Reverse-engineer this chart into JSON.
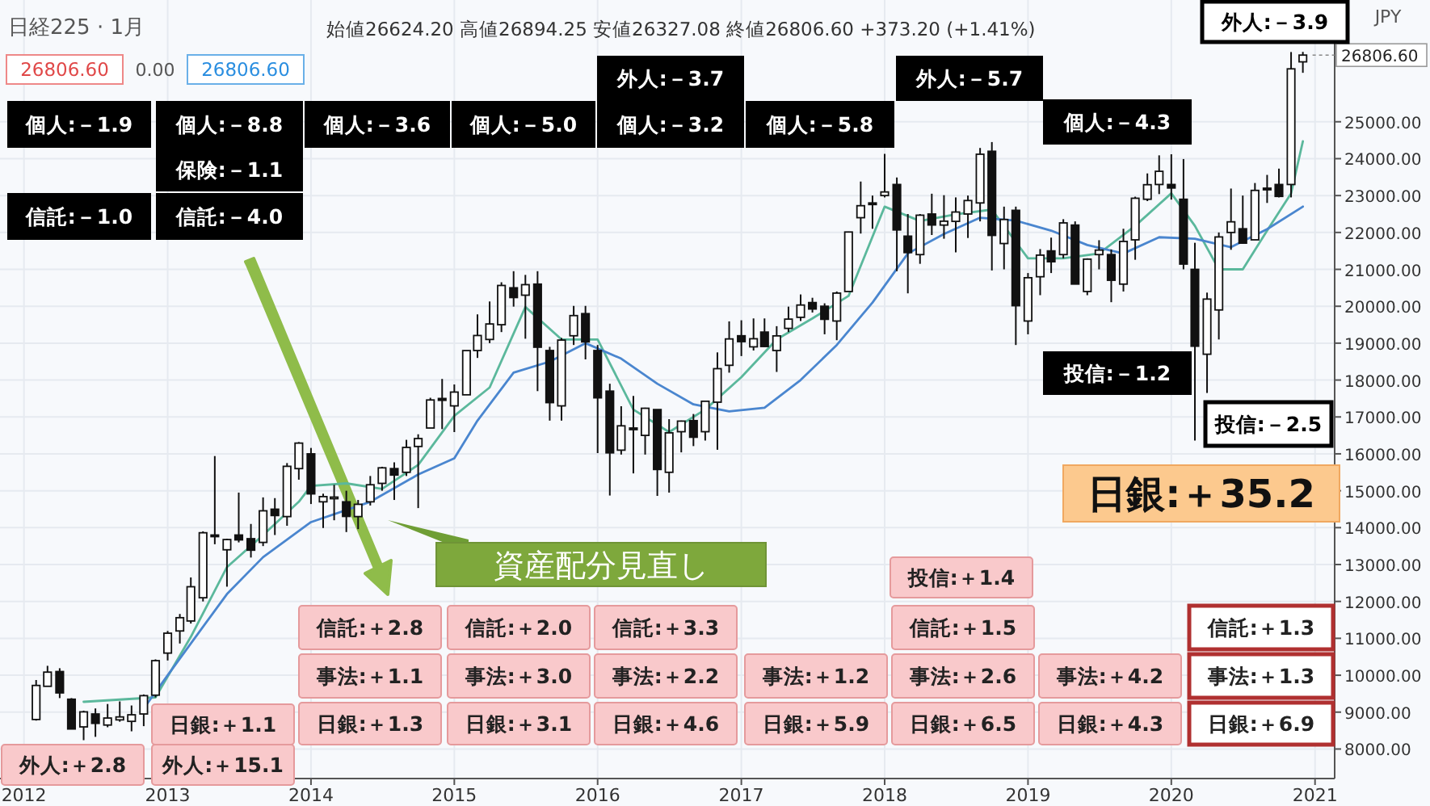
{
  "chart_data": {
    "type": "candlestick",
    "title": "日経225 · 1月",
    "subtitle": "始値26624.20 高値26894.25 安値26327.08 終値26806.60 +373.20 (+1.41%)",
    "annotations": [
      "26806.60",
      "0.00",
      "26806.60",
      "JPY",
      {
        "text": "26806.60",
        "x": "2020-12",
        "y": 26806.6
      },
      "個人:－1.9",
      "信託:－1.0",
      "個人:－8.8",
      "保険:－1.1",
      "信託:－4.0",
      "個人:－3.6",
      "個人:－5.0",
      "外人:－3.7",
      "個人:－3.2",
      "個人:－5.8",
      "外人:－5.7",
      "個人:－4.3",
      "投信:－1.2",
      "外人:－3.9",
      "投信:－2.5",
      "日銀:＋35.2",
      "資産配分見直し",
      "外人:＋2.8",
      "外人:＋15.1",
      "日銀:＋1.1",
      "信託:＋2.8",
      "事法:＋1.1",
      "日銀:＋1.3",
      "信託:＋2.0",
      "事法:＋3.0",
      "日銀:＋3.1",
      "信託:＋3.3",
      "事法:＋2.2",
      "日銀:＋4.6",
      "事法:＋1.2",
      "日銀:＋5.9",
      "投信:＋1.4",
      "信託:＋1.5",
      "事法:＋2.6",
      "日銀:＋6.5",
      "事法:＋4.2",
      "日銀:＋4.3",
      "信託:＋1.3",
      "事法:＋1.3",
      "日銀:＋6.9"
    ],
    "x": [
      "2012-02",
      "2012-03",
      "2012-04",
      "2012-05",
      "2012-06",
      "2012-07",
      "2012-08",
      "2012-09",
      "2012-10",
      "2012-11",
      "2012-12",
      "2013-01",
      "2013-02",
      "2013-03",
      "2013-04",
      "2013-05",
      "2013-06",
      "2013-07",
      "2013-08",
      "2013-09",
      "2013-10",
      "2013-11",
      "2013-12",
      "2014-01",
      "2014-02",
      "2014-03",
      "2014-04",
      "2014-05",
      "2014-06",
      "2014-07",
      "2014-08",
      "2014-09",
      "2014-10",
      "2014-11",
      "2014-12",
      "2015-01",
      "2015-02",
      "2015-03",
      "2015-04",
      "2015-05",
      "2015-06",
      "2015-07",
      "2015-08",
      "2015-09",
      "2015-10",
      "2015-11",
      "2015-12",
      "2016-01",
      "2016-02",
      "2016-03",
      "2016-04",
      "2016-05",
      "2016-06",
      "2016-07",
      "2016-08",
      "2016-09",
      "2016-10",
      "2016-11",
      "2016-12",
      "2017-01",
      "2017-02",
      "2017-03",
      "2017-04",
      "2017-05",
      "2017-06",
      "2017-07",
      "2017-08",
      "2017-09",
      "2017-10",
      "2017-11",
      "2017-12",
      "2018-01",
      "2018-02",
      "2018-03",
      "2018-04",
      "2018-05",
      "2018-06",
      "2018-07",
      "2018-08",
      "2018-09",
      "2018-10",
      "2018-11",
      "2018-12",
      "2019-01",
      "2019-02",
      "2019-03",
      "2019-04",
      "2019-05",
      "2019-06",
      "2019-07",
      "2019-08",
      "2019-09",
      "2019-10",
      "2019-11",
      "2019-12",
      "2020-01",
      "2020-02",
      "2020-03",
      "2020-04",
      "2020-05",
      "2020-06",
      "2020-07",
      "2020-08",
      "2020-09",
      "2020-10",
      "2020-11",
      "2020-12"
    ],
    "ohlc": [
      [
        8800,
        9870,
        8770,
        9723
      ],
      [
        9700,
        10255,
        9700,
        10084
      ],
      [
        10100,
        10190,
        9380,
        9521
      ],
      [
        9350,
        9380,
        8540,
        8543
      ],
      [
        8600,
        9040,
        8240,
        9007
      ],
      [
        8950,
        9100,
        8330,
        8695
      ],
      [
        8650,
        9220,
        8590,
        8840
      ],
      [
        8790,
        9290,
        8740,
        8870
      ],
      [
        8750,
        9180,
        8480,
        8928
      ],
      [
        8950,
        9480,
        8620,
        9446
      ],
      [
        9460,
        10430,
        9400,
        10395
      ],
      [
        10600,
        11200,
        10400,
        11139
      ],
      [
        11200,
        11660,
        10860,
        11559
      ],
      [
        11470,
        12650,
        11400,
        12398
      ],
      [
        12100,
        13900,
        12000,
        13861
      ],
      [
        13800,
        15940,
        13550,
        13775
      ],
      [
        13400,
        13700,
        12400,
        13677
      ],
      [
        13800,
        14950,
        13600,
        13668
      ],
      [
        13700,
        14100,
        13190,
        13389
      ],
      [
        13600,
        14820,
        13500,
        14456
      ],
      [
        14500,
        14800,
        13800,
        14328
      ],
      [
        14300,
        15750,
        14050,
        15662
      ],
      [
        15600,
        16320,
        15300,
        16291
      ],
      [
        16000,
        16160,
        14640,
        14915
      ],
      [
        14700,
        14920,
        13990,
        14841
      ],
      [
        14800,
        15160,
        14200,
        14828
      ],
      [
        14700,
        15000,
        13880,
        14304
      ],
      [
        14300,
        14750,
        13960,
        14632
      ],
      [
        14700,
        15400,
        14600,
        15162
      ],
      [
        15200,
        15650,
        15000,
        15621
      ],
      [
        15600,
        15770,
        14750,
        15425
      ],
      [
        15500,
        16380,
        15400,
        16174
      ],
      [
        16200,
        16530,
        14530,
        16414
      ],
      [
        16700,
        17520,
        16700,
        17460
      ],
      [
        17500,
        18030,
        16670,
        17451
      ],
      [
        17300,
        17880,
        16590,
        17674
      ],
      [
        17600,
        18800,
        17600,
        18798
      ],
      [
        18800,
        19780,
        18600,
        19207
      ],
      [
        19100,
        20130,
        19000,
        19520
      ],
      [
        19500,
        20650,
        19300,
        20563
      ],
      [
        20500,
        20950,
        19990,
        20236
      ],
      [
        20300,
        20850,
        19120,
        20585
      ],
      [
        20600,
        20950,
        17700,
        18890
      ],
      [
        18800,
        18900,
        16900,
        17388
      ],
      [
        17300,
        19140,
        16900,
        19083
      ],
      [
        19200,
        20010,
        18950,
        19747
      ],
      [
        19800,
        20010,
        18560,
        19034
      ],
      [
        18800,
        18950,
        16020,
        17518
      ],
      [
        17700,
        17900,
        14870,
        16027
      ],
      [
        16100,
        17290,
        15980,
        16759
      ],
      [
        16700,
        17570,
        15470,
        16666
      ],
      [
        16500,
        17250,
        15980,
        17235
      ],
      [
        17200,
        17200,
        14860,
        15576
      ],
      [
        15500,
        16940,
        14950,
        16569
      ],
      [
        16600,
        16900,
        16040,
        16887
      ],
      [
        16900,
        17080,
        16210,
        16450
      ],
      [
        16600,
        17430,
        16360,
        17425
      ],
      [
        17400,
        18750,
        16110,
        18308
      ],
      [
        18400,
        19590,
        18200,
        19114
      ],
      [
        19200,
        19620,
        18650,
        19041
      ],
      [
        18900,
        19670,
        18800,
        19119
      ],
      [
        19300,
        19670,
        18900,
        18909
      ],
      [
        18800,
        19460,
        18220,
        19197
      ],
      [
        19400,
        19990,
        19300,
        19651
      ],
      [
        19700,
        20320,
        19600,
        20033
      ],
      [
        20100,
        20230,
        19830,
        19925
      ],
      [
        20000,
        20080,
        19240,
        19646
      ],
      [
        19600,
        20400,
        19080,
        20356
      ],
      [
        20400,
        22020,
        20400,
        22012
      ],
      [
        22400,
        23380,
        21970,
        22725
      ],
      [
        22800,
        23000,
        22100,
        22765
      ],
      [
        23000,
        24130,
        22950,
        23098
      ],
      [
        23300,
        23490,
        20950,
        22068
      ],
      [
        21900,
        22500,
        20350,
        21454
      ],
      [
        21400,
        22500,
        21150,
        22468
      ],
      [
        22500,
        23050,
        21930,
        22202
      ],
      [
        22200,
        23010,
        21830,
        22305
      ],
      [
        22300,
        22950,
        21460,
        22554
      ],
      [
        22500,
        23000,
        21850,
        22865
      ],
      [
        22800,
        24290,
        22300,
        24120
      ],
      [
        24200,
        24450,
        20970,
        21920
      ],
      [
        21700,
        22700,
        21000,
        22351
      ],
      [
        22600,
        22700,
        18950,
        20015
      ],
      [
        19600,
        20900,
        19240,
        20773
      ],
      [
        20800,
        21550,
        20300,
        21385
      ],
      [
        21500,
        21860,
        20900,
        21206
      ],
      [
        21400,
        22360,
        21300,
        22259
      ],
      [
        22200,
        22300,
        20600,
        20601
      ],
      [
        20400,
        21300,
        20300,
        21276
      ],
      [
        21400,
        21790,
        21000,
        21522
      ],
      [
        21400,
        21540,
        20110,
        20704
      ],
      [
        20600,
        22100,
        20400,
        21756
      ],
      [
        21800,
        22970,
        21260,
        22927
      ],
      [
        22900,
        23600,
        22850,
        23294
      ],
      [
        23300,
        24090,
        23040,
        23657
      ],
      [
        23300,
        24120,
        22890,
        23205
      ],
      [
        22900,
        23990,
        21000,
        21143
      ],
      [
        21000,
        21720,
        16360,
        18917
      ],
      [
        18700,
        20370,
        17650,
        20194
      ],
      [
        19900,
        22000,
        19100,
        21878
      ],
      [
        22000,
        23190,
        21530,
        22288
      ],
      [
        22100,
        23000,
        21700,
        21710
      ],
      [
        21800,
        23340,
        21800,
        23140
      ],
      [
        23200,
        23560,
        22800,
        23185
      ],
      [
        23300,
        23730,
        22950,
        22977
      ],
      [
        23300,
        26890,
        22950,
        26434
      ],
      [
        26624,
        26894,
        26327,
        26807
      ]
    ],
    "series": [
      {
        "type": "line",
        "color": "#5bb89c",
        "x": [
          "2012-06",
          "2012-12",
          "2013-03",
          "2013-06",
          "2013-09",
          "2013-12",
          "2014-01",
          "2014-04",
          "2014-07",
          "2014-10",
          "2015-01",
          "2015-04",
          "2015-07",
          "2015-10",
          "2016-01",
          "2016-04",
          "2016-07",
          "2016-10",
          "2017-01",
          "2017-04",
          "2017-07",
          "2017-10",
          "2018-01",
          "2018-04",
          "2018-07",
          "2018-10",
          "2019-01",
          "2019-04",
          "2019-07",
          "2019-10",
          "2020-01",
          "2020-03",
          "2020-05",
          "2020-07",
          "2020-09",
          "2020-11",
          "2020-12"
        ],
        "values": [
          9280,
          9400,
          11040,
          12930,
          13800,
          14700,
          15130,
          15200,
          15050,
          15700,
          17030,
          17800,
          19980,
          19100,
          19100,
          17200,
          16590,
          17200,
          18080,
          19100,
          19670,
          20280,
          22700,
          22310,
          22490,
          22620,
          21300,
          21300,
          21430,
          22180,
          23060,
          22180,
          21000,
          21000,
          22050,
          23060,
          24470
        ]
      },
      {
        "type": "line",
        "color": "#4a86cf",
        "x": [
          "2012-11",
          "2013-01",
          "2013-06",
          "2013-09",
          "2014-01",
          "2014-06",
          "2014-10",
          "2015-01",
          "2015-03",
          "2015-06",
          "2015-09",
          "2015-12",
          "2016-03",
          "2016-06",
          "2016-09",
          "2016-12",
          "2017-03",
          "2017-06",
          "2017-09",
          "2017-12",
          "2018-03",
          "2018-06",
          "2018-09",
          "2018-12",
          "2019-03",
          "2019-06",
          "2019-09",
          "2019-12",
          "2020-03",
          "2020-06",
          "2020-09",
          "2020-12"
        ],
        "values": [
          9100,
          10000,
          12200,
          13200,
          14150,
          14700,
          15440,
          15880,
          16900,
          18200,
          18500,
          19000,
          18580,
          17900,
          17340,
          17150,
          17250,
          18000,
          18950,
          20100,
          21430,
          21960,
          22400,
          22320,
          22050,
          21660,
          21430,
          21870,
          21830,
          21600,
          22090,
          22700
        ]
      }
    ],
    "xlim": [
      "2011-11-01",
      "2021-02-20"
    ],
    "xticks": [
      "2012",
      "2013",
      "2014",
      "2015",
      "2016",
      "2017",
      "2018",
      "2019",
      "2020",
      "2021"
    ],
    "ylim": [
      7200,
      28300
    ],
    "yticks": [
      {
        "value": 8000,
        "label": "8000.00"
      },
      {
        "value": 9000,
        "label": "9000.00"
      },
      {
        "value": 10000,
        "label": "10000.00"
      },
      {
        "value": 11000,
        "label": "11000.00"
      },
      {
        "value": 12000,
        "label": "12000.00"
      },
      {
        "value": 13000,
        "label": "13000.00"
      },
      {
        "value": 14000,
        "label": "14000.00"
      },
      {
        "value": 15000,
        "label": "15000.00"
      },
      {
        "value": 16000,
        "label": "16000.00"
      },
      {
        "value": 17000,
        "label": "17000.00"
      },
      {
        "value": 18000,
        "label": "18000.00"
      },
      {
        "value": 19000,
        "label": "19000.00"
      },
      {
        "value": 20000,
        "label": "20000.00"
      },
      {
        "value": 21000,
        "label": "21000.00"
      },
      {
        "value": 22000,
        "label": "22000.00"
      },
      {
        "value": 23000,
        "label": "23000.00"
      },
      {
        "value": 24000,
        "label": "24000.00"
      },
      {
        "value": 25000,
        "label": "25000.00"
      }
    ],
    "grid": true
  }
}
